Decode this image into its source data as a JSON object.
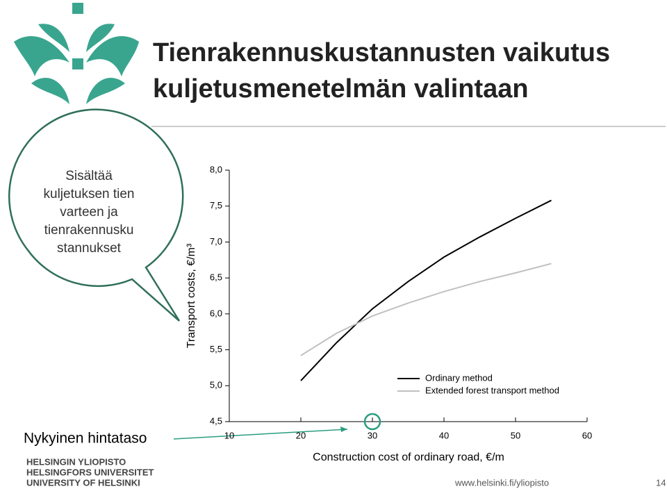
{
  "header": {
    "title_lines": [
      "Tienrakennuskustannusten vaikutus",
      "kuljetusmenetelmän valintaan"
    ]
  },
  "callout": {
    "lines": [
      "Sisältää",
      "kuljetuksen tien",
      "varteen ja",
      "tienrakennusku",
      "stannukset"
    ]
  },
  "marker_label": "Nykyinen hintataso",
  "logo": {
    "lines": [
      "HELSINGIN YLIOPISTO",
      "HELSINGFORS UNIVERSITET",
      "UNIVERSITY OF HELSINKI"
    ]
  },
  "footer": {
    "url": "www.helsinki.fi/yliopisto",
    "page": "14"
  },
  "chart_data": {
    "type": "line",
    "xlabel": "Construction cost of ordinary road, €/m",
    "ylabel": "Transport costs, €/m³",
    "x": [
      20,
      25,
      30,
      35,
      40,
      45,
      50,
      55
    ],
    "series": [
      {
        "name": "Ordinary method",
        "color": "#000000",
        "values": [
          5.07,
          5.6,
          6.07,
          6.45,
          6.79,
          7.07,
          7.33,
          7.58
        ]
      },
      {
        "name": "Extended forest transport method",
        "color": "#c0c0c0",
        "values": [
          5.42,
          5.73,
          5.97,
          6.15,
          6.31,
          6.45,
          6.57,
          6.7
        ]
      }
    ],
    "xlim": [
      10,
      60
    ],
    "xticks": [
      10,
      20,
      30,
      40,
      50,
      60
    ],
    "ylim": [
      4.5,
      8
    ],
    "yticks": [
      {
        "value": 4.5,
        "label": "4,5"
      },
      {
        "value": 5,
        "label": "5,0"
      },
      {
        "value": 5.5,
        "label": "5,5"
      },
      {
        "value": 6,
        "label": "6,0"
      },
      {
        "value": 6.5,
        "label": "6,5"
      },
      {
        "value": 7,
        "label": "7,0"
      },
      {
        "value": 7.5,
        "label": "7,5"
      },
      {
        "value": 8,
        "label": "8,0"
      }
    ],
    "current_price_x": 30
  }
}
